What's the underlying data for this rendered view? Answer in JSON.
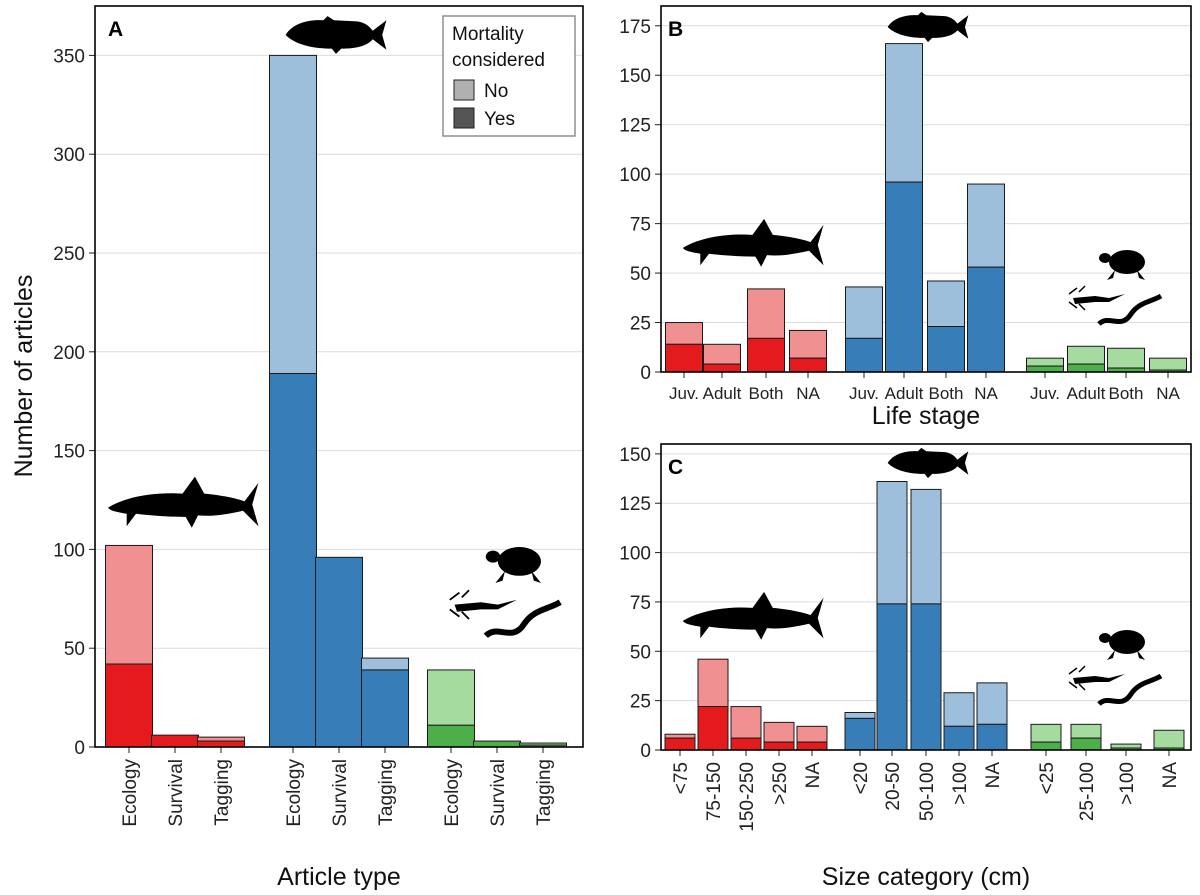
{
  "colors": {
    "shark_dark": "#e41a1c",
    "shark_light": "#f09090",
    "fish_dark": "#377eb8",
    "fish_light": "#9dbfdc",
    "other_dark": "#4daf4a",
    "other_light": "#a6dba0",
    "legend_no": "#b0b0b0",
    "legend_yes": "#555555"
  },
  "shared": {
    "ylabel": "Number of articles",
    "legend_title_1": "Mortality",
    "legend_title_2": "considered",
    "legend_no": "No",
    "legend_yes": "Yes"
  },
  "chart_data": [
    {
      "panel": "A",
      "type": "bar",
      "stacked": true,
      "xlabel": "Article type",
      "ylabel": "Number of articles",
      "ylim": [
        0,
        375
      ],
      "yticks": [
        0,
        50,
        100,
        150,
        200,
        250,
        300,
        350
      ],
      "groups": [
        {
          "color": "shark",
          "categories": [
            "Ecology",
            "Survival",
            "Tagging"
          ],
          "yes": [
            42,
            6,
            3
          ],
          "no": [
            60,
            0,
            2
          ]
        },
        {
          "color": "fish",
          "categories": [
            "Ecology",
            "Survival",
            "Tagging"
          ],
          "yes": [
            189,
            96,
            39
          ],
          "no": [
            161,
            0,
            6
          ]
        },
        {
          "color": "other",
          "categories": [
            "Ecology",
            "Survival",
            "Tagging"
          ],
          "yes": [
            11,
            3,
            1
          ],
          "no": [
            28,
            0,
            1
          ]
        }
      ],
      "legend": {
        "title": "Mortality considered",
        "entries": [
          "No",
          "Yes"
        ],
        "position": "top-right"
      }
    },
    {
      "panel": "B",
      "type": "bar",
      "stacked": true,
      "xlabel": "Life stage",
      "ylim": [
        0,
        185
      ],
      "yticks": [
        0,
        25,
        50,
        75,
        100,
        125,
        150,
        175
      ],
      "groups": [
        {
          "color": "shark",
          "categories": [
            "Juv.",
            "Adult",
            "Both",
            "NA"
          ],
          "yes": [
            14,
            4,
            17,
            7
          ],
          "no": [
            11,
            10,
            25,
            14
          ]
        },
        {
          "color": "fish",
          "categories": [
            "Juv.",
            "Adult",
            "Both",
            "NA"
          ],
          "yes": [
            17,
            96,
            23,
            53
          ],
          "no": [
            26,
            70,
            23,
            42
          ]
        },
        {
          "color": "other",
          "categories": [
            "Juv.",
            "Adult",
            "Both",
            "NA"
          ],
          "yes": [
            3,
            4,
            2,
            1
          ],
          "no": [
            4,
            9,
            10,
            6
          ]
        }
      ]
    },
    {
      "panel": "C",
      "type": "bar",
      "stacked": true,
      "xlabel": "Size category (cm)",
      "ylim": [
        0,
        155
      ],
      "yticks": [
        0,
        25,
        50,
        75,
        100,
        125,
        150
      ],
      "groups": [
        {
          "color": "shark",
          "categories": [
            "<75",
            "75-150",
            "150-250",
            ">250",
            "NA"
          ],
          "yes": [
            6,
            22,
            6,
            4,
            4
          ],
          "no": [
            2,
            24,
            16,
            10,
            8
          ]
        },
        {
          "color": "fish",
          "categories": [
            "<20",
            "20-50",
            "50-100",
            ">100",
            "NA"
          ],
          "yes": [
            16,
            74,
            74,
            12,
            13
          ],
          "no": [
            3,
            62,
            58,
            17,
            21
          ]
        },
        {
          "color": "other",
          "categories": [
            "<25",
            "25-100",
            ">100",
            "NA"
          ],
          "yes": [
            4,
            6,
            1,
            1
          ],
          "no": [
            9,
            7,
            2,
            9
          ]
        }
      ]
    }
  ]
}
